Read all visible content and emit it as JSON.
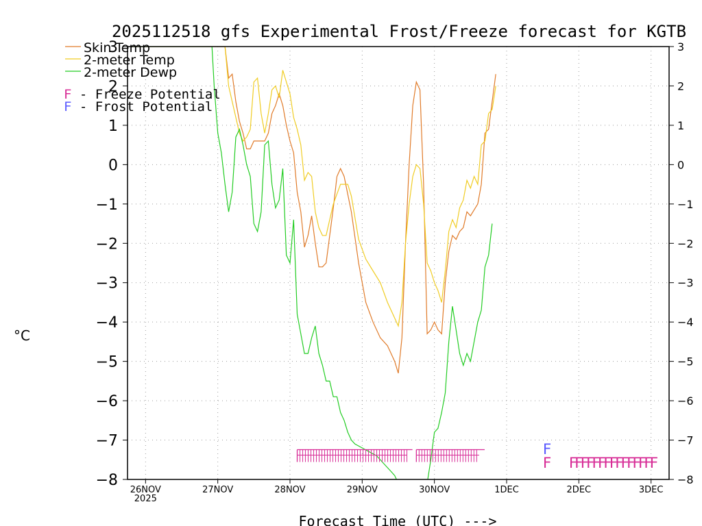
{
  "chart_data": {
    "type": "line",
    "title": "2025112518 gfs Experimental Frost/Freeze forecast for KGTB",
    "xlabel": "Forecast Time (UTC) --->",
    "ylabel": "°C",
    "xlim": [
      -0.25,
      7.25
    ],
    "ylim": [
      -8,
      3
    ],
    "yticks": [
      3,
      2,
      1,
      0,
      -1,
      -2,
      -3,
      -4,
      -5,
      -6,
      -7,
      -8
    ],
    "ytick_labels": [
      "3",
      "2",
      "1",
      "0",
      "−1",
      "−2",
      "−3",
      "−4",
      "−5",
      "−6",
      "−7",
      "−8"
    ],
    "xticks": [
      {
        "x": 0,
        "label": "26NOV",
        "sublabel": "2025"
      },
      {
        "x": 1,
        "label": "27NOV",
        "sublabel": ""
      },
      {
        "x": 2,
        "label": "28NOV",
        "sublabel": ""
      },
      {
        "x": 3,
        "label": "29NOV",
        "sublabel": ""
      },
      {
        "x": 4,
        "label": "30NOV",
        "sublabel": ""
      },
      {
        "x": 5,
        "label": "1DEC",
        "sublabel": ""
      },
      {
        "x": 6,
        "label": "2DEC",
        "sublabel": ""
      },
      {
        "x": 7,
        "label": "3DEC",
        "sublabel": ""
      }
    ],
    "grid": true,
    "legend": {
      "placement": "top-left",
      "series_entries": [
        "Skin Temp",
        "2-meter Temp",
        "2-meter Dewp"
      ],
      "marker_entries": [
        {
          "glyph": "F",
          "text": " - Freeze Potential",
          "color": "#d72b96"
        },
        {
          "glyph": "F",
          "text": " - Frost Potential",
          "color": "#5a5aff"
        }
      ]
    },
    "series": [
      {
        "name": "Skin Temp",
        "color": "#e07a28",
        "points": [
          [
            -0.2,
            3.0
          ],
          [
            0.8,
            3.0
          ],
          [
            0.95,
            3.0
          ],
          [
            1.1,
            3.0
          ],
          [
            1.15,
            2.2
          ],
          [
            1.2,
            2.3
          ],
          [
            1.25,
            1.6
          ],
          [
            1.3,
            1.1
          ],
          [
            1.35,
            0.8
          ],
          [
            1.4,
            0.4
          ],
          [
            1.45,
            0.4
          ],
          [
            1.5,
            0.6
          ],
          [
            1.6,
            0.6
          ],
          [
            1.65,
            0.6
          ],
          [
            1.7,
            0.8
          ],
          [
            1.75,
            1.3
          ],
          [
            1.8,
            1.5
          ],
          [
            1.85,
            1.8
          ],
          [
            1.9,
            1.5
          ],
          [
            1.95,
            1.0
          ],
          [
            2.0,
            0.6
          ],
          [
            2.05,
            0.3
          ],
          [
            2.1,
            -0.7
          ],
          [
            2.15,
            -1.2
          ],
          [
            2.2,
            -2.1
          ],
          [
            2.25,
            -1.8
          ],
          [
            2.3,
            -1.3
          ],
          [
            2.35,
            -2.0
          ],
          [
            2.4,
            -2.6
          ],
          [
            2.45,
            -2.6
          ],
          [
            2.5,
            -2.5
          ],
          [
            2.6,
            -1.1
          ],
          [
            2.65,
            -0.3
          ],
          [
            2.7,
            -0.1
          ],
          [
            2.75,
            -0.3
          ],
          [
            2.85,
            -1.2
          ],
          [
            2.95,
            -2.5
          ],
          [
            3.05,
            -3.5
          ],
          [
            3.15,
            -4.0
          ],
          [
            3.25,
            -4.4
          ],
          [
            3.35,
            -4.6
          ],
          [
            3.45,
            -5.0
          ],
          [
            3.5,
            -5.3
          ],
          [
            3.55,
            -4.4
          ],
          [
            3.6,
            -2.0
          ],
          [
            3.65,
            0.0
          ],
          [
            3.7,
            1.5
          ],
          [
            3.75,
            2.1
          ],
          [
            3.8,
            1.9
          ],
          [
            3.85,
            -0.5
          ],
          [
            3.9,
            -4.3
          ],
          [
            3.95,
            -4.2
          ],
          [
            4.0,
            -4.0
          ],
          [
            4.05,
            -4.2
          ],
          [
            4.1,
            -4.3
          ],
          [
            4.15,
            -3.0
          ],
          [
            4.2,
            -2.2
          ],
          [
            4.25,
            -1.8
          ],
          [
            4.3,
            -1.9
          ],
          [
            4.35,
            -1.7
          ],
          [
            4.4,
            -1.6
          ],
          [
            4.45,
            -1.2
          ],
          [
            4.5,
            -1.3
          ],
          [
            4.6,
            -1.0
          ],
          [
            4.65,
            -0.5
          ],
          [
            4.7,
            0.8
          ],
          [
            4.75,
            0.9
          ],
          [
            4.8,
            1.6
          ],
          [
            4.85,
            2.3
          ]
        ]
      },
      {
        "name": "2-meter Temp",
        "color": "#f0cc22",
        "points": [
          [
            -0.2,
            3.0
          ],
          [
            0.95,
            3.0
          ],
          [
            1.1,
            3.0
          ],
          [
            1.15,
            2.0
          ],
          [
            1.2,
            1.6
          ],
          [
            1.25,
            1.2
          ],
          [
            1.3,
            0.8
          ],
          [
            1.35,
            0.6
          ],
          [
            1.4,
            0.7
          ],
          [
            1.45,
            0.9
          ],
          [
            1.5,
            2.1
          ],
          [
            1.55,
            2.2
          ],
          [
            1.6,
            1.3
          ],
          [
            1.65,
            0.8
          ],
          [
            1.7,
            1.3
          ],
          [
            1.75,
            1.9
          ],
          [
            1.8,
            2.0
          ],
          [
            1.85,
            1.7
          ],
          [
            1.9,
            2.4
          ],
          [
            1.95,
            2.1
          ],
          [
            2.0,
            1.8
          ],
          [
            2.05,
            1.2
          ],
          [
            2.1,
            0.9
          ],
          [
            2.15,
            0.5
          ],
          [
            2.2,
            -0.4
          ],
          [
            2.25,
            -0.2
          ],
          [
            2.3,
            -0.3
          ],
          [
            2.35,
            -1.2
          ],
          [
            2.4,
            -1.6
          ],
          [
            2.45,
            -1.8
          ],
          [
            2.5,
            -1.8
          ],
          [
            2.6,
            -1.0
          ],
          [
            2.7,
            -0.5
          ],
          [
            2.8,
            -0.5
          ],
          [
            2.85,
            -0.8
          ],
          [
            2.95,
            -1.9
          ],
          [
            3.05,
            -2.4
          ],
          [
            3.15,
            -2.7
          ],
          [
            3.25,
            -3.0
          ],
          [
            3.35,
            -3.5
          ],
          [
            3.45,
            -3.9
          ],
          [
            3.5,
            -4.1
          ],
          [
            3.55,
            -3.5
          ],
          [
            3.6,
            -2.0
          ],
          [
            3.65,
            -1.0
          ],
          [
            3.7,
            -0.3
          ],
          [
            3.75,
            0.0
          ],
          [
            3.8,
            -0.1
          ],
          [
            3.85,
            -1.0
          ],
          [
            3.9,
            -2.5
          ],
          [
            3.95,
            -2.7
          ],
          [
            4.0,
            -3.0
          ],
          [
            4.05,
            -3.2
          ],
          [
            4.1,
            -3.5
          ],
          [
            4.15,
            -2.7
          ],
          [
            4.2,
            -1.7
          ],
          [
            4.25,
            -1.4
          ],
          [
            4.3,
            -1.6
          ],
          [
            4.35,
            -1.1
          ],
          [
            4.4,
            -0.9
          ],
          [
            4.45,
            -0.4
          ],
          [
            4.5,
            -0.6
          ],
          [
            4.55,
            -0.3
          ],
          [
            4.6,
            -0.5
          ],
          [
            4.65,
            0.5
          ],
          [
            4.7,
            0.6
          ],
          [
            4.75,
            1.3
          ],
          [
            4.8,
            1.4
          ],
          [
            4.85,
            2.0
          ]
        ]
      },
      {
        "name": "2-meter Dewp",
        "color": "#22cc22",
        "points": [
          [
            -0.2,
            3.0
          ],
          [
            0.92,
            3.0
          ],
          [
            0.95,
            2.0
          ],
          [
            1.0,
            0.8
          ],
          [
            1.05,
            0.3
          ],
          [
            1.1,
            -0.5
          ],
          [
            1.15,
            -1.2
          ],
          [
            1.2,
            -0.7
          ],
          [
            1.25,
            0.7
          ],
          [
            1.3,
            0.9
          ],
          [
            1.35,
            0.5
          ],
          [
            1.4,
            0.0
          ],
          [
            1.45,
            -0.3
          ],
          [
            1.5,
            -1.5
          ],
          [
            1.55,
            -1.7
          ],
          [
            1.6,
            -1.2
          ],
          [
            1.65,
            0.5
          ],
          [
            1.7,
            0.6
          ],
          [
            1.75,
            -0.5
          ],
          [
            1.8,
            -1.1
          ],
          [
            1.85,
            -0.9
          ],
          [
            1.9,
            -0.1
          ],
          [
            1.95,
            -2.3
          ],
          [
            2.0,
            -2.5
          ],
          [
            2.05,
            -1.4
          ],
          [
            2.1,
            -3.8
          ],
          [
            2.15,
            -4.3
          ],
          [
            2.2,
            -4.8
          ],
          [
            2.25,
            -4.8
          ],
          [
            2.3,
            -4.4
          ],
          [
            2.35,
            -4.1
          ],
          [
            2.4,
            -4.8
          ],
          [
            2.45,
            -5.1
          ],
          [
            2.5,
            -5.5
          ],
          [
            2.55,
            -5.5
          ],
          [
            2.6,
            -5.9
          ],
          [
            2.65,
            -5.9
          ],
          [
            2.7,
            -6.3
          ],
          [
            2.75,
            -6.5
          ],
          [
            2.8,
            -6.8
          ],
          [
            2.85,
            -7.0
          ],
          [
            2.9,
            -7.1
          ],
          [
            3.0,
            -7.2
          ],
          [
            3.1,
            -7.3
          ],
          [
            3.2,
            -7.4
          ],
          [
            3.3,
            -7.6
          ],
          [
            3.4,
            -7.8
          ],
          [
            3.45,
            -7.9
          ],
          [
            3.5,
            -8.1
          ],
          [
            3.9,
            -8.1
          ],
          [
            3.95,
            -7.5
          ],
          [
            4.0,
            -6.8
          ],
          [
            4.05,
            -6.7
          ],
          [
            4.1,
            -6.3
          ],
          [
            4.15,
            -5.8
          ],
          [
            4.2,
            -4.5
          ],
          [
            4.25,
            -3.6
          ],
          [
            4.3,
            -4.2
          ],
          [
            4.35,
            -4.8
          ],
          [
            4.4,
            -5.1
          ],
          [
            4.45,
            -4.8
          ],
          [
            4.5,
            -5.0
          ],
          [
            4.55,
            -4.5
          ],
          [
            4.6,
            -4.0
          ],
          [
            4.65,
            -3.7
          ],
          [
            4.7,
            -2.6
          ],
          [
            4.75,
            -2.3
          ],
          [
            4.8,
            -1.5
          ]
        ]
      }
    ],
    "markers": [
      {
        "label": "Freeze Potential (hatched band)",
        "color": "#d72b96",
        "value": -7.4,
        "x_range": [
          2.1,
          3.62
        ]
      },
      {
        "label": "Freeze Potential (hatched band)",
        "color": "#d72b96",
        "value": -7.4,
        "x_range": [
          3.75,
          4.62
        ]
      },
      {
        "label": "Frost Potential",
        "color": "#5a5aff",
        "glyph": "F",
        "value": -7.2,
        "x": [
          5.5
        ]
      },
      {
        "label": "Freeze Potential",
        "color": "#d72b96",
        "glyph": "F",
        "value": -7.55,
        "x": [
          5.5,
          5.86,
          5.94,
          6.02,
          6.1,
          6.18,
          6.26,
          6.34,
          6.42,
          6.5,
          6.58,
          6.66,
          6.74,
          6.82,
          6.9,
          6.98
        ]
      }
    ]
  }
}
